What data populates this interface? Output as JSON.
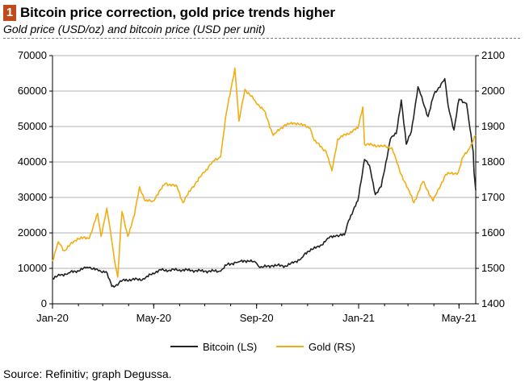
{
  "header": {
    "badge": "1",
    "title": "Bitcoin price correction, gold price trends higher",
    "subtitle": "Gold price (USD/oz) and bitcoin price (USD per unit)"
  },
  "source": "Source: Refinitiv; graph Degussa.",
  "colors": {
    "bitcoin": "#222222",
    "gold": "#f2ad14",
    "grid": "#b0b0b0",
    "badge": "#c04a1a"
  },
  "chart_data": {
    "type": "line",
    "x_ticks": [
      "Jan-20",
      "May-20",
      "Sep-20",
      "Jan-21",
      "May-21"
    ],
    "x_start": "2020-01-01",
    "x_end": "2021-05-21",
    "y_left": {
      "min": 0,
      "max": 70000,
      "step": 10000,
      "ticks": [
        "0",
        "10000",
        "20000",
        "30000",
        "40000",
        "50000",
        "60000",
        "70000"
      ]
    },
    "y_right": {
      "min": 1400,
      "max": 2100,
      "step": 100,
      "ticks": [
        "1400",
        "1500",
        "1600",
        "1700",
        "1800",
        "1900",
        "2000",
        "2100"
      ]
    },
    "grid": true,
    "legend_position": "bottom",
    "series": [
      {
        "name": "Bitcoin (LS)",
        "axis": "left",
        "color": "#222222",
        "points": [
          [
            "2020-01-01",
            7200
          ],
          [
            "2020-01-10",
            8000
          ],
          [
            "2020-01-20",
            8700
          ],
          [
            "2020-01-31",
            9350
          ],
          [
            "2020-02-10",
            10100
          ],
          [
            "2020-02-14",
            10300
          ],
          [
            "2020-02-25",
            9300
          ],
          [
            "2020-03-05",
            9100
          ],
          [
            "2020-03-12",
            4900
          ],
          [
            "2020-03-16",
            5000
          ],
          [
            "2020-03-25",
            6700
          ],
          [
            "2020-04-05",
            6800
          ],
          [
            "2020-04-20",
            7000
          ],
          [
            "2020-04-30",
            8700
          ],
          [
            "2020-05-10",
            9500
          ],
          [
            "2020-05-20",
            9500
          ],
          [
            "2020-06-01",
            9600
          ],
          [
            "2020-06-15",
            9400
          ],
          [
            "2020-07-01",
            9200
          ],
          [
            "2020-07-20",
            9200
          ],
          [
            "2020-07-28",
            11100
          ],
          [
            "2020-08-10",
            11800
          ],
          [
            "2020-08-17",
            12200
          ],
          [
            "2020-08-31",
            11700
          ],
          [
            "2020-09-05",
            10200
          ],
          [
            "2020-09-20",
            10800
          ],
          [
            "2020-10-05",
            10700
          ],
          [
            "2020-10-15",
            11500
          ],
          [
            "2020-10-25",
            13000
          ],
          [
            "2020-11-05",
            15500
          ],
          [
            "2020-11-15",
            16000
          ],
          [
            "2020-11-25",
            18500
          ],
          [
            "2020-12-05",
            19200
          ],
          [
            "2020-12-15",
            19400
          ],
          [
            "2020-12-20",
            23500
          ],
          [
            "2020-12-31",
            29000
          ],
          [
            "2021-01-08",
            40700
          ],
          [
            "2021-01-14",
            39000
          ],
          [
            "2021-01-21",
            30800
          ],
          [
            "2021-01-28",
            33000
          ],
          [
            "2021-02-08",
            46500
          ],
          [
            "2021-02-15",
            48000
          ],
          [
            "2021-02-21",
            57500
          ],
          [
            "2021-02-27",
            45000
          ],
          [
            "2021-03-05",
            48600
          ],
          [
            "2021-03-13",
            61200
          ],
          [
            "2021-03-25",
            52800
          ],
          [
            "2021-04-01",
            59000
          ],
          [
            "2021-04-14",
            63500
          ],
          [
            "2021-04-18",
            56000
          ],
          [
            "2021-04-25",
            49000
          ],
          [
            "2021-05-01",
            57700
          ],
          [
            "2021-05-10",
            56500
          ],
          [
            "2021-05-14",
            49500
          ],
          [
            "2021-05-18",
            42800
          ],
          [
            "2021-05-19",
            37000
          ],
          [
            "2021-05-21",
            32000
          ]
        ]
      },
      {
        "name": "Gold (RS)",
        "axis": "right",
        "color": "#f2ad14",
        "points": [
          [
            "2020-01-01",
            1520
          ],
          [
            "2020-01-08",
            1575
          ],
          [
            "2020-01-15",
            1550
          ],
          [
            "2020-01-31",
            1585
          ],
          [
            "2020-02-14",
            1585
          ],
          [
            "2020-02-24",
            1655
          ],
          [
            "2020-02-28",
            1590
          ],
          [
            "2020-03-06",
            1670
          ],
          [
            "2020-03-12",
            1575
          ],
          [
            "2020-03-16",
            1510
          ],
          [
            "2020-03-19",
            1475
          ],
          [
            "2020-03-24",
            1660
          ],
          [
            "2020-03-31",
            1590
          ],
          [
            "2020-04-08",
            1650
          ],
          [
            "2020-04-14",
            1730
          ],
          [
            "2020-04-21",
            1690
          ],
          [
            "2020-04-30",
            1690
          ],
          [
            "2020-05-15",
            1740
          ],
          [
            "2020-05-29",
            1730
          ],
          [
            "2020-06-05",
            1685
          ],
          [
            "2020-06-15",
            1725
          ],
          [
            "2020-06-30",
            1770
          ],
          [
            "2020-07-10",
            1800
          ],
          [
            "2020-07-20",
            1815
          ],
          [
            "2020-07-27",
            1940
          ],
          [
            "2020-08-06",
            2065
          ],
          [
            "2020-08-11",
            1915
          ],
          [
            "2020-08-18",
            2005
          ],
          [
            "2020-08-31",
            1970
          ],
          [
            "2020-09-10",
            1945
          ],
          [
            "2020-09-21",
            1875
          ],
          [
            "2020-10-05",
            1905
          ],
          [
            "2020-10-20",
            1910
          ],
          [
            "2020-11-04",
            1895
          ],
          [
            "2020-11-09",
            1860
          ],
          [
            "2020-11-23",
            1830
          ],
          [
            "2020-11-30",
            1775
          ],
          [
            "2020-12-07",
            1865
          ],
          [
            "2020-12-31",
            1895
          ],
          [
            "2021-01-06",
            1955
          ],
          [
            "2021-01-08",
            1850
          ],
          [
            "2021-01-29",
            1845
          ],
          [
            "2021-02-10",
            1840
          ],
          [
            "2021-02-19",
            1775
          ],
          [
            "2021-03-01",
            1725
          ],
          [
            "2021-03-08",
            1685
          ],
          [
            "2021-03-19",
            1745
          ],
          [
            "2021-03-31",
            1690
          ],
          [
            "2021-04-15",
            1765
          ],
          [
            "2021-04-30",
            1770
          ],
          [
            "2021-05-06",
            1815
          ],
          [
            "2021-05-14",
            1840
          ],
          [
            "2021-05-21",
            1875
          ]
        ]
      }
    ]
  }
}
